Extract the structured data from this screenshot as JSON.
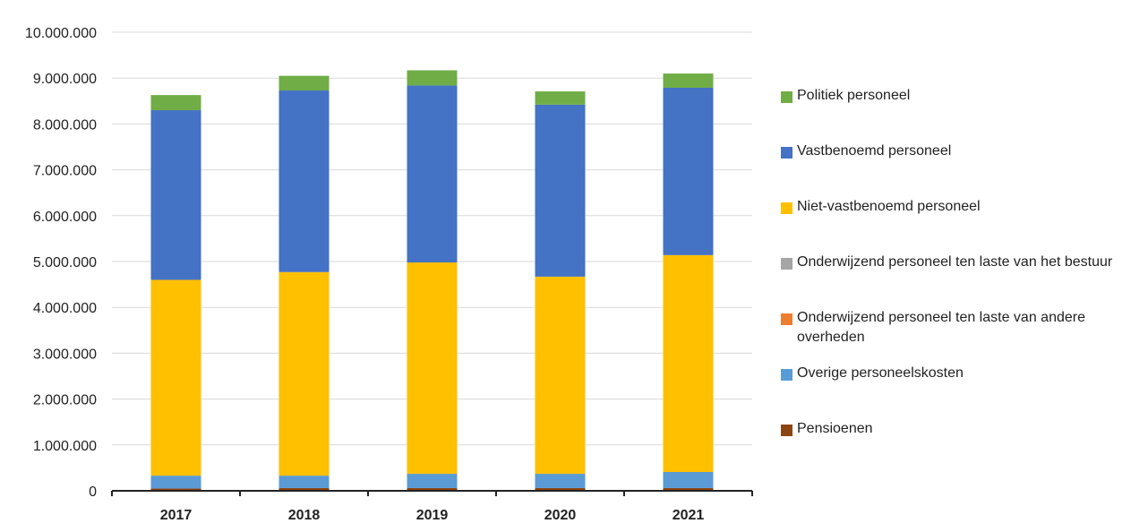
{
  "chart_data": {
    "type": "bar",
    "stacked": true,
    "categories": [
      "2017",
      "2018",
      "2019",
      "2020",
      "2021"
    ],
    "ylim": [
      0,
      10000000
    ],
    "y_ticks": [
      "0",
      "1.000.000",
      "2.000.000",
      "3.000.000",
      "4.000.000",
      "5.000.000",
      "6.000.000",
      "7.000.000",
      "8.000.000",
      "9.000.000",
      "10.000.000"
    ],
    "grid": true,
    "legend_position": "right",
    "series": [
      {
        "name": "Pensioenen",
        "color": "#8B4513",
        "values": [
          50000,
          60000,
          60000,
          60000,
          60000
        ]
      },
      {
        "name": "Overige personeelskosten",
        "color": "#5B9BD5",
        "values": [
          280000,
          270000,
          310000,
          310000,
          350000
        ]
      },
      {
        "name": "Onderwijzend personeel ten laste van andere overheden",
        "color": "#ED7D31",
        "values": [
          0,
          0,
          0,
          0,
          0
        ]
      },
      {
        "name": "Onderwijzend personeel ten laste van het bestuur",
        "color": "#A5A5A5",
        "values": [
          0,
          0,
          0,
          0,
          0
        ]
      },
      {
        "name": "Niet-vastbenoemd personeel",
        "color": "#FFC000",
        "values": [
          4270000,
          4440000,
          4610000,
          4300000,
          4730000
        ]
      },
      {
        "name": "Vastbenoemd personeel",
        "color": "#4472C4",
        "values": [
          3700000,
          3960000,
          3860000,
          3750000,
          3650000
        ]
      },
      {
        "name": "Politiek personeel",
        "color": "#70AD47",
        "values": [
          330000,
          320000,
          330000,
          290000,
          310000
        ]
      }
    ],
    "legend_order": [
      "Politiek personeel",
      "Vastbenoemd personeel",
      "Niet-vastbenoemd personeel",
      "Onderwijzend personeel ten laste van het bestuur",
      "Onderwijzend personeel ten laste van andere overheden",
      "Overige personeelskosten",
      "Pensioenen"
    ]
  }
}
